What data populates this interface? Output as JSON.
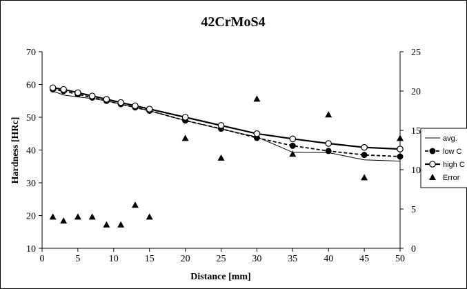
{
  "chart_data": {
    "type": "line",
    "title": "42CrMoS4",
    "xlabel": "Distance [mm]",
    "ylabel": "Hardness [HRc]",
    "xlim": [
      0,
      50
    ],
    "ylim": [
      10,
      70
    ],
    "y2lim": [
      0,
      25
    ],
    "xticks": [
      0,
      5,
      10,
      15,
      20,
      25,
      30,
      35,
      40,
      45,
      50
    ],
    "yticks": [
      10,
      20,
      30,
      40,
      50,
      60,
      70
    ],
    "y2ticks": [
      0,
      5,
      10,
      15,
      20,
      25
    ],
    "grid": false,
    "legend_position": "right",
    "series": [
      {
        "name": "avg.",
        "axis": "left",
        "style": "thin-solid",
        "x": [
          1.5,
          3,
          5,
          7,
          9,
          11,
          13,
          15,
          20,
          25,
          30,
          35,
          40,
          45,
          50
        ],
        "y": [
          58,
          56.8,
          56.2,
          55.7,
          55,
          54,
          53,
          52,
          49,
          46.4,
          44,
          39.3,
          39.2,
          37,
          36.6
        ]
      },
      {
        "name": "low C",
        "axis": "left",
        "style": "dashed-filled-circle",
        "x": [
          1.5,
          3,
          5,
          7,
          9,
          11,
          13,
          15,
          20,
          25,
          30,
          35,
          40,
          45,
          50
        ],
        "y": [
          58.5,
          58,
          57,
          56,
          55,
          54,
          53,
          52,
          49,
          46.5,
          43.7,
          41.3,
          39.7,
          38.5,
          38
        ]
      },
      {
        "name": "high C",
        "axis": "left",
        "style": "solid-open-circle",
        "x": [
          1.5,
          3,
          5,
          7,
          9,
          11,
          13,
          15,
          20,
          25,
          30,
          35,
          40,
          45,
          50
        ],
        "y": [
          59,
          58.5,
          57.5,
          56.5,
          55.5,
          54.5,
          53.5,
          52.5,
          50,
          47.5,
          45,
          43.4,
          42,
          40.8,
          40.3
        ]
      },
      {
        "name": "Error",
        "axis": "right",
        "style": "triangle-markers",
        "x": [
          1.5,
          3,
          5,
          7,
          9,
          11,
          13,
          15,
          20,
          25,
          30,
          35,
          40,
          45,
          50
        ],
        "y": [
          4,
          3.5,
          4,
          4,
          3,
          3,
          5.5,
          4,
          14,
          11.5,
          19,
          12,
          17,
          9,
          14
        ]
      }
    ]
  }
}
